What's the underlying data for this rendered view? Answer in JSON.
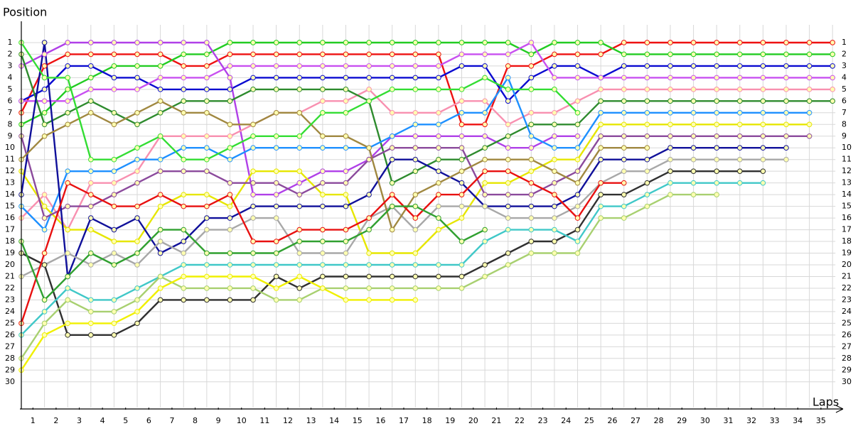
{
  "chart_data": {
    "type": "line",
    "ylabel": "Position",
    "xlabel": "Laps",
    "x": [
      0,
      1,
      2,
      3,
      4,
      5,
      6,
      7,
      8,
      9,
      10,
      11,
      12,
      13,
      14,
      15,
      16,
      17,
      18,
      19,
      20,
      21,
      22,
      23,
      24,
      25,
      26,
      27,
      28,
      29,
      30,
      31,
      32,
      33,
      34,
      35
    ],
    "xlim": [
      0,
      35.3
    ],
    "ylim": [
      32.2,
      -1
    ],
    "grid": true,
    "xticks": [
      {
        "value": 0.5,
        "label": "1"
      },
      {
        "value": 1.5,
        "label": "2"
      },
      {
        "value": 2.5,
        "label": "3"
      },
      {
        "value": 3.5,
        "label": "4"
      },
      {
        "value": 4.5,
        "label": "5"
      },
      {
        "value": 5.5,
        "label": "6"
      },
      {
        "value": 6.5,
        "label": "7"
      },
      {
        "value": 7.5,
        "label": "8"
      },
      {
        "value": 8.5,
        "label": "9"
      },
      {
        "value": 9.5,
        "label": "10"
      },
      {
        "value": 10.5,
        "label": "11"
      },
      {
        "value": 11.5,
        "label": "12"
      },
      {
        "value": 12.5,
        "label": "13"
      },
      {
        "value": 13.5,
        "label": "14"
      },
      {
        "value": 14.5,
        "label": "15"
      },
      {
        "value": 15.5,
        "label": "16"
      },
      {
        "value": 16.5,
        "label": "17"
      },
      {
        "value": 17.5,
        "label": "18"
      },
      {
        "value": 18.5,
        "label": "19"
      },
      {
        "value": 19.5,
        "label": "20"
      },
      {
        "value": 20.5,
        "label": "21"
      },
      {
        "value": 21.5,
        "label": "22"
      },
      {
        "value": 22.5,
        "label": "23"
      },
      {
        "value": 23.5,
        "label": "24"
      },
      {
        "value": 24.5,
        "label": "25"
      },
      {
        "value": 25.5,
        "label": "26"
      },
      {
        "value": 26.5,
        "label": "27"
      },
      {
        "value": 27.5,
        "label": "28"
      },
      {
        "value": 28.5,
        "label": "29"
      },
      {
        "value": 29.5,
        "label": "30"
      },
      {
        "value": 30.5,
        "label": "31"
      },
      {
        "value": 31.5,
        "label": "32"
      },
      {
        "value": 32.5,
        "label": "33"
      },
      {
        "value": 33.5,
        "label": "34"
      },
      {
        "value": 34.5,
        "label": "35"
      }
    ],
    "yticks": [
      1,
      2,
      3,
      4,
      5,
      6,
      7,
      8,
      9,
      10,
      11,
      12,
      13,
      14,
      15,
      16,
      17,
      18,
      19,
      20,
      21,
      22,
      23,
      24,
      25,
      26,
      27,
      28,
      29,
      30
    ],
    "series": [
      {
        "color": "#ee1111",
        "values": [
          7,
          3,
          2,
          2,
          2,
          2,
          2,
          3,
          3,
          2,
          2,
          2,
          2,
          2,
          2,
          2,
          2,
          2,
          2,
          8,
          8,
          3,
          3,
          2,
          2,
          2,
          1,
          1,
          1,
          1,
          1,
          1,
          1,
          1,
          1,
          1
        ]
      },
      {
        "color": "#22cc22",
        "values": [
          8,
          7,
          5,
          4,
          3,
          3,
          3,
          2,
          2,
          1,
          1,
          1,
          1,
          1,
          1,
          1,
          1,
          1,
          1,
          1,
          1,
          1,
          2,
          1,
          1,
          1,
          2,
          2,
          2,
          2,
          2,
          2,
          2,
          2,
          2,
          2
        ]
      },
      {
        "color": "#0a0ad0",
        "values": [
          6,
          5,
          3,
          3,
          4,
          4,
          5,
          5,
          5,
          5,
          4,
          4,
          4,
          4,
          4,
          4,
          4,
          4,
          4,
          3,
          3,
          6,
          4,
          3,
          3,
          4,
          3,
          3,
          3,
          3,
          3,
          3,
          3,
          3,
          3,
          3
        ]
      },
      {
        "color": "#c850f0",
        "values": [
          6,
          6,
          6,
          5,
          5,
          5,
          4,
          4,
          4,
          3,
          3,
          3,
          3,
          3,
          3,
          3,
          3,
          3,
          3,
          2,
          2,
          2,
          1,
          4,
          4,
          4,
          4,
          4,
          4,
          4,
          4,
          4,
          4,
          4,
          4,
          4
        ]
      },
      {
        "color": "#b040e8",
        "values": [
          3,
          2,
          1,
          1,
          1,
          1,
          1,
          1,
          1,
          4,
          14,
          14,
          13,
          12,
          12,
          11,
          9,
          9,
          9,
          9,
          9,
          10,
          10,
          9,
          9,
          null,
          null,
          null,
          null,
          null,
          null,
          null,
          null,
          null,
          null,
          null
        ]
      },
      {
        "color": "#f890b0",
        "values": [
          16,
          14,
          17,
          13,
          13,
          12,
          9,
          9,
          9,
          9,
          8,
          7,
          7,
          6,
          6,
          5,
          7,
          7,
          7,
          6,
          6,
          8,
          7,
          7,
          6,
          5,
          5,
          5,
          5,
          5,
          5,
          5,
          5,
          5,
          5,
          5
        ]
      },
      {
        "color": "#2e8b2e",
        "values": [
          2,
          8,
          7,
          6,
          7,
          8,
          7,
          6,
          6,
          6,
          5,
          5,
          5,
          5,
          5,
          6,
          13,
          12,
          11,
          11,
          10,
          9,
          8,
          8,
          8,
          6,
          6,
          6,
          6,
          6,
          6,
          6,
          6,
          6,
          6,
          6
        ]
      },
      {
        "color": "#1e90ff",
        "values": [
          15,
          17,
          12,
          12,
          12,
          11,
          11,
          10,
          10,
          11,
          10,
          10,
          10,
          10,
          10,
          10,
          9,
          8,
          8,
          7,
          7,
          4,
          9,
          10,
          10,
          7,
          7,
          7,
          7,
          7,
          7,
          7,
          7,
          7,
          7,
          null
        ]
      },
      {
        "color": "#e6e600",
        "values": [
          12,
          15,
          17,
          17,
          18,
          18,
          15,
          14,
          14,
          15,
          12,
          12,
          12,
          14,
          14,
          19,
          19,
          19,
          17,
          16,
          13,
          13,
          12,
          11,
          11,
          8,
          8,
          8,
          8,
          8,
          8,
          8,
          8,
          8,
          8,
          null
        ]
      },
      {
        "color": "#8b4a9c",
        "values": [
          9,
          16,
          15,
          15,
          14,
          13,
          12,
          12,
          12,
          13,
          13,
          13,
          14,
          13,
          13,
          11,
          10,
          10,
          10,
          10,
          14,
          14,
          14,
          13,
          12,
          9,
          9,
          9,
          9,
          9,
          9,
          9,
          9,
          9,
          9,
          null
        ]
      },
      {
        "color": "#10109a",
        "values": [
          14,
          1,
          21,
          16,
          17,
          16,
          19,
          18,
          16,
          16,
          15,
          15,
          15,
          15,
          15,
          14,
          11,
          11,
          12,
          13,
          15,
          15,
          15,
          15,
          14,
          11,
          11,
          11,
          10,
          10,
          10,
          10,
          10,
          10,
          null,
          null
        ]
      },
      {
        "color": "#a8a8a8",
        "values": [
          21,
          20,
          19,
          20,
          19,
          20,
          18,
          19,
          17,
          17,
          16,
          16,
          19,
          19,
          19,
          16,
          15,
          17,
          15,
          15,
          15,
          16,
          16,
          16,
          15,
          13,
          12,
          12,
          11,
          11,
          11,
          11,
          11,
          11,
          null,
          null
        ]
      },
      {
        "color": "#303030",
        "values": [
          19,
          20,
          26,
          26,
          26,
          25,
          23,
          23,
          23,
          23,
          23,
          21,
          22,
          21,
          21,
          21,
          21,
          21,
          21,
          21,
          20,
          19,
          18,
          18,
          17,
          14,
          14,
          13,
          12,
          12,
          12,
          12,
          12,
          null,
          null,
          null
        ]
      },
      {
        "color": "#40c8c8",
        "values": [
          26,
          24,
          22,
          23,
          23,
          22,
          21,
          20,
          20,
          20,
          20,
          20,
          20,
          20,
          20,
          20,
          20,
          20,
          20,
          20,
          18,
          17,
          17,
          17,
          18,
          15,
          15,
          14,
          13,
          13,
          13,
          13,
          13,
          null,
          null,
          null
        ]
      },
      {
        "color": "#a8d070",
        "values": [
          28,
          25,
          23,
          24,
          24,
          23,
          21,
          22,
          22,
          22,
          22,
          23,
          23,
          22,
          22,
          22,
          22,
          22,
          22,
          22,
          21,
          20,
          19,
          19,
          19,
          16,
          16,
          15,
          14,
          14,
          14,
          null,
          null,
          null,
          null,
          null
        ]
      },
      {
        "color": "#a08840",
        "values": [
          11,
          9,
          8,
          7,
          8,
          7,
          6,
          7,
          7,
          8,
          8,
          7,
          7,
          9,
          9,
          10,
          17,
          14,
          13,
          12,
          11,
          11,
          11,
          12,
          13,
          10,
          10,
          10,
          null,
          null,
          null,
          null,
          null,
          null,
          null,
          null
        ]
      },
      {
        "color": "#e81010",
        "values": [
          25,
          19,
          13,
          14,
          15,
          15,
          14,
          15,
          15,
          14,
          18,
          18,
          17,
          17,
          17,
          16,
          14,
          16,
          14,
          14,
          12,
          12,
          13,
          14,
          16,
          13,
          13,
          null,
          null,
          null,
          null,
          null,
          null,
          null,
          null,
          null
        ]
      },
      {
        "color": "#f0f000",
        "values": [
          29,
          26,
          25,
          25,
          25,
          24,
          22,
          21,
          21,
          21,
          21,
          22,
          21,
          22,
          23,
          23,
          23,
          23,
          null,
          null,
          null,
          null,
          null,
          null,
          null,
          null,
          null,
          null,
          null,
          null,
          null,
          null,
          null,
          null,
          null,
          null
        ]
      },
      {
        "color": "#33dd33",
        "values": [
          1,
          4,
          4,
          11,
          11,
          10,
          9,
          11,
          11,
          10,
          9,
          9,
          9,
          7,
          7,
          6,
          5,
          5,
          5,
          5,
          4,
          5,
          5,
          5,
          7,
          null,
          null,
          null,
          null,
          null,
          null,
          null,
          null,
          null,
          null,
          null
        ]
      },
      {
        "color": "#30a030",
        "values": [
          18,
          23,
          21,
          19,
          20,
          19,
          17,
          17,
          19,
          19,
          19,
          19,
          18,
          18,
          18,
          17,
          15,
          15,
          16,
          18,
          17,
          null,
          null,
          null,
          null,
          null,
          null,
          null,
          null,
          null,
          null,
          null,
          null,
          null,
          null,
          null
        ]
      }
    ]
  }
}
